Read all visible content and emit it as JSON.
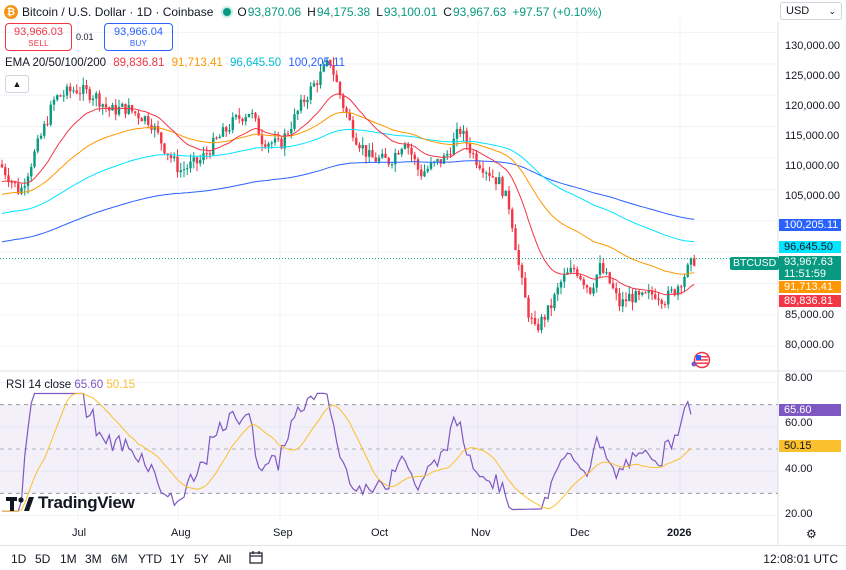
{
  "header": {
    "title": "Bitcoin / U.S. Dollar · 1D · Coinbase",
    "open_label": "O",
    "open": "93,870.06",
    "high_label": "H",
    "high": "94,175.38",
    "low_label": "L",
    "low": "93,100.01",
    "close_label": "C",
    "close": "93,967.63",
    "change": "+97.57 (+0.10%)"
  },
  "trade": {
    "sell_price": "93,966.03",
    "sell_label": "SELL",
    "spread": "0.01",
    "buy_price": "93,966.04",
    "buy_label": "BUY"
  },
  "ema": {
    "label": "EMA 20/50/100/200",
    "v20": "89,836.81",
    "v50": "91,713.41",
    "v100": "96,645.50",
    "v200": "100,205.11"
  },
  "rsi": {
    "label": "RSI 14 close",
    "value": "65.60",
    "ma": "50.15"
  },
  "currency": "USD",
  "price_axis": [
    "130,000.00",
    "125,000.00",
    "120,000.00",
    "115,000.00",
    "110,000.00",
    "105,000.00",
    "85,000.00",
    "80,000.00"
  ],
  "rsi_axis": [
    "80.00",
    "60.00",
    "40.00",
    "20.00"
  ],
  "badges": {
    "ema200": "100,205.11",
    "ema100": "96,645.50",
    "last": "93,967.63",
    "countdown": "11:51:59",
    "ema50": "91,713.41",
    "ema20": "89,836.81",
    "rsi": "65.60",
    "rsi_ma": "50.15",
    "symbol": "BTCUSD"
  },
  "time_axis": [
    "Jul",
    "Aug",
    "Sep",
    "Oct",
    "Nov",
    "Dec",
    "2026"
  ],
  "logo": "TradingView",
  "ranges": [
    "1D",
    "5D",
    "1M",
    "3M",
    "6M",
    "YTD",
    "1Y",
    "5Y",
    "All"
  ],
  "clock": "12:08:01 UTC",
  "colors": {
    "up": "#089981",
    "down": "#f23645",
    "ema20": "#f23645",
    "ema50": "#ff9800",
    "ema100": "#00e5ff",
    "ema200": "#2962ff",
    "rsi": "#7e57c2",
    "rsi_ma": "#fbc02d"
  },
  "chart_data": {
    "type": "candlestick",
    "price_ylim": [
      77000,
      132000
    ],
    "rsi_ylim": [
      18,
      82
    ],
    "rsi_band": [
      30,
      70
    ],
    "ema20_end": 89836.81,
    "ema50_end": 91713.41,
    "ema100_end": 96645.5,
    "ema200_end": 100205.11,
    "last_close": 93967.63,
    "rsi_end": 65.6,
    "rsi_ma_end": 50.15
  }
}
